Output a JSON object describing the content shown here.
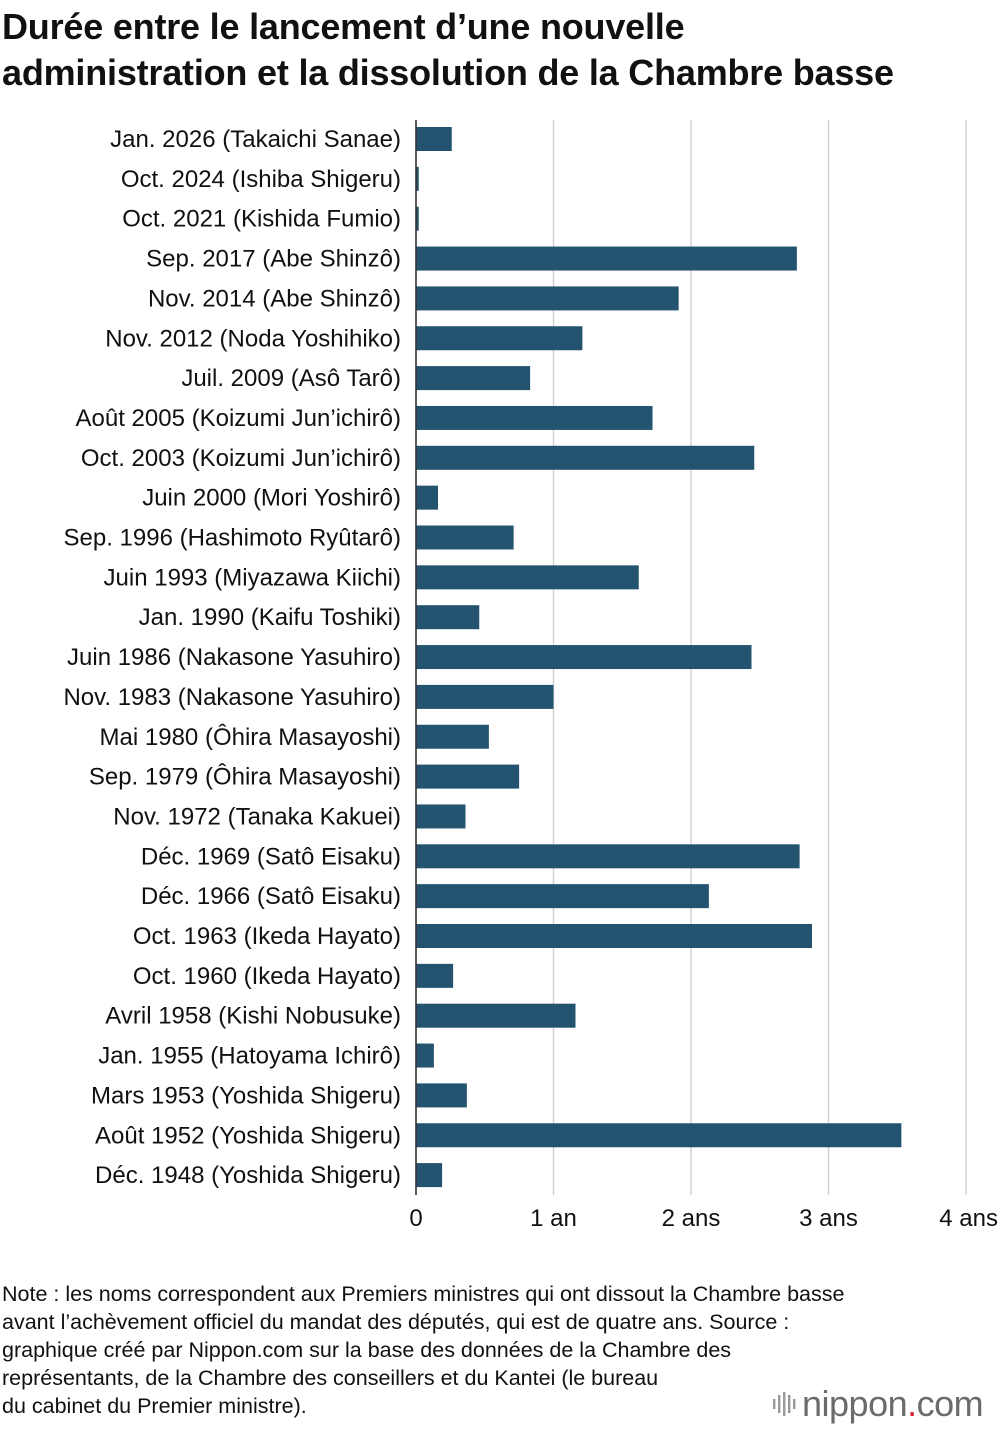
{
  "title_lines": [
    "Durée entre le lancement d’une nouvelle",
    "administration et la dissolution de la Chambre basse"
  ],
  "note_lines": [
    "Note : les noms correspondent aux Premiers ministres qui ont dissout la Chambre basse",
    "avant l’achèvement officiel du mandat des députés, qui est de quatre ans. Source :",
    "graphique créé par Nippon.com sur la base des données de la Chambre des",
    "représentants, de la Chambre des conseillers et du Kantei (le bureau",
    "du cabinet du Premier ministre)."
  ],
  "logo": {
    "word": "nippon",
    "dot": ".",
    "suffix": "com"
  },
  "colors": {
    "bar": "#24536f",
    "grid": "#cfcfcf",
    "text": "#111111",
    "logo_text": "#6b6b6b",
    "logo_dot": "#d7263d"
  },
  "chart_data": {
    "type": "bar",
    "orientation": "horizontal",
    "title": "Durée entre le lancement d’une nouvelle administration et la dissolution de la Chambre basse",
    "categories": [
      "Jan. 2026 (Takaichi Sanae)",
      "Oct. 2024 (Ishiba Shigeru)",
      "Oct. 2021 (Kishida Fumio)",
      "Sep. 2017 (Abe Shinzô)",
      "Nov. 2014 (Abe Shinzô)",
      "Nov. 2012 (Noda Yoshihiko)",
      "Juil. 2009 (Asô Tarô)",
      "Août 2005 (Koizumi Jun’ichirô)",
      "Oct. 2003 (Koizumi Jun’ichirô)",
      "Juin 2000 (Mori Yoshirô)",
      "Sep. 1996 (Hashimoto Ryûtarô)",
      "Juin 1993 (Miyazawa Kiichi)",
      "Jan. 1990 (Kaifu Toshiki)",
      "Juin 1986 (Nakasone Yasuhiro)",
      "Nov. 1983 (Nakasone Yasuhiro)",
      "Mai 1980 (Ôhira Masayoshi)",
      "Sep. 1979 (Ôhira Masayoshi)",
      "Nov. 1972 (Tanaka Kakuei)",
      "Déc. 1969 (Satô Eisaku)",
      "Déc. 1966 (Satô Eisaku)",
      "Oct. 1963 (Ikeda Hayato)",
      "Oct. 1960 (Ikeda Hayato)",
      "Avril 1958 (Kishi Nobusuke)",
      "Jan. 1955 (Hatoyama Ichirô)",
      "Mars 1953 (Yoshida Shigeru)",
      "Août 1952 (Yoshida Shigeru)",
      "Déc. 1948 (Yoshida Shigeru)"
    ],
    "values": [
      0.26,
      0.02,
      0.02,
      2.77,
      1.91,
      1.21,
      0.83,
      1.72,
      2.46,
      0.16,
      0.71,
      1.62,
      0.46,
      2.44,
      1.0,
      0.53,
      0.75,
      0.36,
      2.79,
      2.13,
      2.88,
      0.27,
      1.16,
      0.13,
      0.37,
      3.53,
      0.19
    ],
    "x_ticks": [
      0,
      1,
      2,
      3,
      4
    ],
    "x_tick_labels": [
      "0",
      "1 an",
      "2 ans",
      "3 ans",
      "4 ans"
    ],
    "xlim": [
      0,
      4
    ],
    "xlabel": "",
    "ylabel": "",
    "grid": "vertical",
    "legend": "none"
  }
}
